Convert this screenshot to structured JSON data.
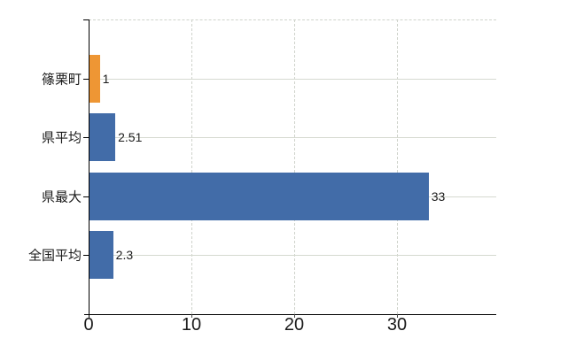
{
  "chart_data": {
    "type": "bar",
    "orientation": "horizontal",
    "title": "",
    "categories": [
      "篠栗町",
      "県平均",
      "県最大",
      "全国平均"
    ],
    "values": [
      1,
      2.51,
      33,
      2.3
    ],
    "value_labels": [
      "1",
      "2.51",
      "33",
      "2.3"
    ],
    "bar_colors": [
      "#EE9634",
      "#426CA8",
      "#426CA8",
      "#426CA8"
    ],
    "x_ticks": [
      {
        "value": 0,
        "label": "0"
      },
      {
        "value": 10,
        "label": "10"
      },
      {
        "value": 20,
        "label": "20"
      },
      {
        "value": 30,
        "label": "30"
      }
    ],
    "xlim": [
      0,
      39.66
    ],
    "grid": true,
    "legend": "none"
  },
  "style": {
    "highlight_color": "#EE9634",
    "base_color": "#426CA8",
    "axis_color": "#000000",
    "gridline_solid_color": "#D5D9D0",
    "gridline_dashed_color": "#CFD3CB",
    "text_color": "#1A1A1A",
    "background_color": "#FFFFFF"
  }
}
